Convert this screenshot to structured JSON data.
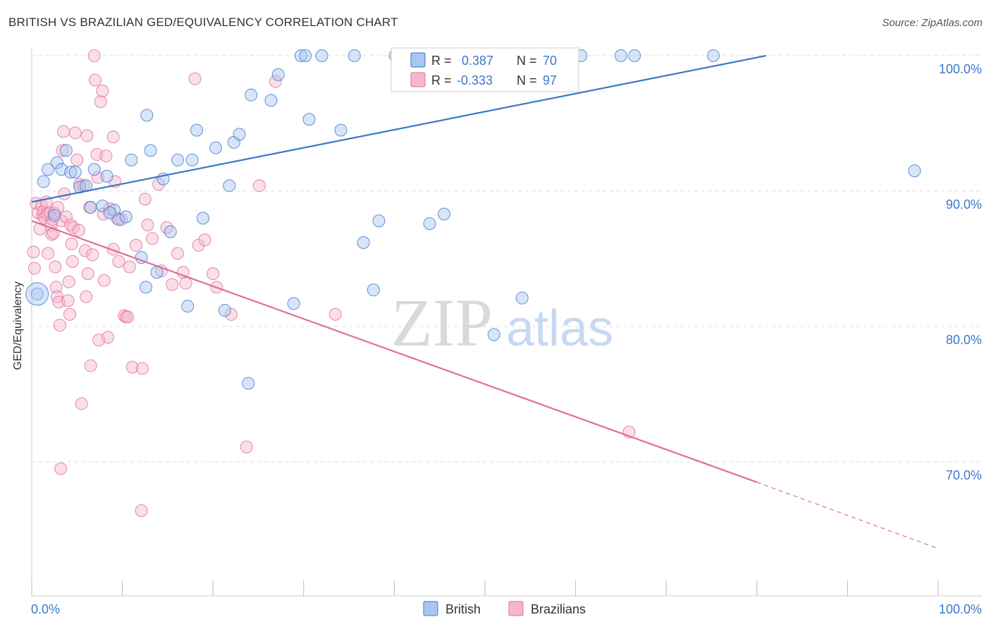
{
  "header": {
    "title": "BRITISH VS BRAZILIAN GED/EQUIVALENCY CORRELATION CHART",
    "source": "Source: ZipAtlas.com"
  },
  "watermark": {
    "zip": "ZIP",
    "atlas": "atlas"
  },
  "colors": {
    "british": "#3a78c9",
    "british_fill": "#a9c6ef",
    "brazilians": "#e06c9a",
    "brazilians_fill": "#f5b7cc",
    "value_text": "#3a78c9",
    "grid": "#dddddd"
  },
  "chart_data": {
    "type": "scatter",
    "title": "BRITISH VS BRAZILIAN GED/EQUIVALENCY CORRELATION CHART",
    "xlabel": "",
    "ylabel": "GED/Equivalency",
    "xlim": [
      0,
      100
    ],
    "ylim": [
      61,
      101
    ],
    "x_tick_labels": [
      "0.0%",
      "100.0%"
    ],
    "y_ticks": [
      70,
      80,
      90,
      100
    ],
    "y_tick_labels": [
      "70.0%",
      "80.0%",
      "90.0%",
      "100.0%"
    ],
    "grid": true,
    "legend_position": "bottom",
    "stats_box": [
      {
        "series": "British",
        "r_label": "R =",
        "r": "0.387",
        "n_label": "N =",
        "n": "70"
      },
      {
        "series": "Brazilians",
        "r_label": "R =",
        "r": "-0.333",
        "n_label": "N =",
        "n": "97"
      }
    ],
    "series": [
      {
        "name": "British",
        "trend": {
          "x0": 0,
          "y0": 89.2,
          "x1": 81,
          "y1": 100.0
        },
        "points": [
          [
            0.6,
            82.4
          ],
          [
            1.3,
            90.7
          ],
          [
            1.8,
            91.6
          ],
          [
            2.8,
            92.1
          ],
          [
            3.3,
            91.6
          ],
          [
            3.8,
            93.0
          ],
          [
            4.3,
            91.4
          ],
          [
            4.8,
            91.4
          ],
          [
            5.3,
            90.3
          ],
          [
            6.0,
            90.4
          ],
          [
            6.9,
            91.6
          ],
          [
            7.8,
            88.9
          ],
          [
            8.3,
            91.1
          ],
          [
            9.1,
            88.6
          ],
          [
            8.6,
            88.4
          ],
          [
            9.6,
            87.9
          ],
          [
            10.4,
            88.1
          ],
          [
            11.0,
            92.3
          ],
          [
            12.1,
            85.1
          ],
          [
            12.6,
            82.9
          ],
          [
            13.1,
            93.0
          ],
          [
            13.8,
            84.0
          ],
          [
            12.7,
            95.6
          ],
          [
            14.5,
            90.9
          ],
          [
            15.3,
            87.0
          ],
          [
            16.1,
            92.3
          ],
          [
            17.2,
            81.5
          ],
          [
            17.7,
            92.3
          ],
          [
            18.2,
            94.5
          ],
          [
            18.9,
            88.0
          ],
          [
            20.3,
            93.2
          ],
          [
            21.3,
            81.2
          ],
          [
            21.8,
            90.4
          ],
          [
            22.3,
            93.6
          ],
          [
            22.9,
            94.2
          ],
          [
            23.9,
            75.8
          ],
          [
            24.2,
            97.1
          ],
          [
            26.4,
            96.7
          ],
          [
            27.2,
            98.6
          ],
          [
            28.9,
            81.7
          ],
          [
            29.7,
            100
          ],
          [
            30.6,
            95.3
          ],
          [
            32.0,
            100
          ],
          [
            34.1,
            94.5
          ],
          [
            35.6,
            100
          ],
          [
            36.6,
            86.2
          ],
          [
            37.7,
            82.7
          ],
          [
            38.3,
            87.8
          ],
          [
            40.1,
            100
          ],
          [
            40.3,
            100
          ],
          [
            41.0,
            100
          ],
          [
            41.6,
            100
          ],
          [
            43.0,
            100
          ],
          [
            43.9,
            87.6
          ],
          [
            45.5,
            88.3
          ],
          [
            48.0,
            100
          ],
          [
            51.0,
            79.4
          ],
          [
            53.1,
            100
          ],
          [
            54.1,
            82.1
          ],
          [
            55.0,
            100
          ],
          [
            57.0,
            100
          ],
          [
            59.3,
            100
          ],
          [
            60.6,
            100
          ],
          [
            65.0,
            100
          ],
          [
            66.5,
            100
          ],
          [
            75.2,
            100
          ],
          [
            97.4,
            91.5
          ],
          [
            2.5,
            88.2
          ],
          [
            6.5,
            88.8
          ],
          [
            30.2,
            100
          ]
        ]
      },
      {
        "name": "Brazilians",
        "trend": {
          "x0": 0,
          "y0": 87.8,
          "x1": 80,
          "y1": 68.5,
          "dash_x1": 100,
          "dash_y1": 63.6
        },
        "points": [
          [
            0.2,
            85.5
          ],
          [
            0.3,
            84.3
          ],
          [
            0.5,
            89.1
          ],
          [
            0.7,
            88.4
          ],
          [
            0.9,
            87.2
          ],
          [
            1.1,
            88.9
          ],
          [
            1.2,
            88.2
          ],
          [
            1.3,
            88.5
          ],
          [
            1.4,
            88.0
          ],
          [
            1.6,
            89.2
          ],
          [
            1.7,
            88.3
          ],
          [
            1.8,
            85.4
          ],
          [
            2.0,
            88.4
          ],
          [
            2.1,
            87.5
          ],
          [
            2.2,
            86.8
          ],
          [
            2.3,
            87.9
          ],
          [
            2.4,
            86.9
          ],
          [
            2.5,
            88.4
          ],
          [
            2.6,
            84.4
          ],
          [
            2.7,
            82.9
          ],
          [
            2.8,
            82.2
          ],
          [
            2.9,
            88.8
          ],
          [
            3.0,
            81.8
          ],
          [
            3.1,
            80.1
          ],
          [
            3.3,
            87.8
          ],
          [
            3.4,
            93.0
          ],
          [
            3.5,
            94.4
          ],
          [
            3.6,
            89.8
          ],
          [
            3.8,
            88.1
          ],
          [
            4.0,
            81.9
          ],
          [
            4.1,
            83.3
          ],
          [
            4.2,
            80.9
          ],
          [
            4.3,
            87.5
          ],
          [
            4.4,
            86.1
          ],
          [
            4.5,
            84.8
          ],
          [
            4.6,
            87.3
          ],
          [
            4.8,
            94.3
          ],
          [
            5.0,
            92.3
          ],
          [
            5.2,
            87.1
          ],
          [
            5.3,
            90.5
          ],
          [
            5.5,
            74.3
          ],
          [
            5.7,
            90.4
          ],
          [
            5.9,
            85.6
          ],
          [
            6.0,
            82.2
          ],
          [
            6.1,
            94.1
          ],
          [
            6.2,
            83.9
          ],
          [
            6.4,
            88.8
          ],
          [
            6.5,
            77.1
          ],
          [
            6.7,
            85.3
          ],
          [
            6.9,
            100
          ],
          [
            7.0,
            98.2
          ],
          [
            7.2,
            92.7
          ],
          [
            7.3,
            91.0
          ],
          [
            7.4,
            79.0
          ],
          [
            7.6,
            96.6
          ],
          [
            7.8,
            97.4
          ],
          [
            7.9,
            88.3
          ],
          [
            8.0,
            83.4
          ],
          [
            8.2,
            92.6
          ],
          [
            8.4,
            79.2
          ],
          [
            8.6,
            88.7
          ],
          [
            9.0,
            85.7
          ],
          [
            9.2,
            90.7
          ],
          [
            9.4,
            88.0
          ],
          [
            9.6,
            84.8
          ],
          [
            9.9,
            87.9
          ],
          [
            10.2,
            80.8
          ],
          [
            10.4,
            80.7
          ],
          [
            10.6,
            80.7
          ],
          [
            10.8,
            84.4
          ],
          [
            11.1,
            77.0
          ],
          [
            11.5,
            86.0
          ],
          [
            12.2,
            76.9
          ],
          [
            12.5,
            89.4
          ],
          [
            12.8,
            87.5
          ],
          [
            13.3,
            86.5
          ],
          [
            14.0,
            90.5
          ],
          [
            14.3,
            84.1
          ],
          [
            14.9,
            87.3
          ],
          [
            15.5,
            83.1
          ],
          [
            16.1,
            85.4
          ],
          [
            16.7,
            84.0
          ],
          [
            17.0,
            83.2
          ],
          [
            18.0,
            98.3
          ],
          [
            18.4,
            86.0
          ],
          [
            19.1,
            86.4
          ],
          [
            20.0,
            83.9
          ],
          [
            20.4,
            82.9
          ],
          [
            22.0,
            80.9
          ],
          [
            23.7,
            71.1
          ],
          [
            25.1,
            90.4
          ],
          [
            26.9,
            98.1
          ],
          [
            33.5,
            80.9
          ],
          [
            65.9,
            72.2
          ],
          [
            3.2,
            69.5
          ],
          [
            12.1,
            66.4
          ],
          [
            9.0,
            94.0
          ]
        ]
      }
    ]
  }
}
